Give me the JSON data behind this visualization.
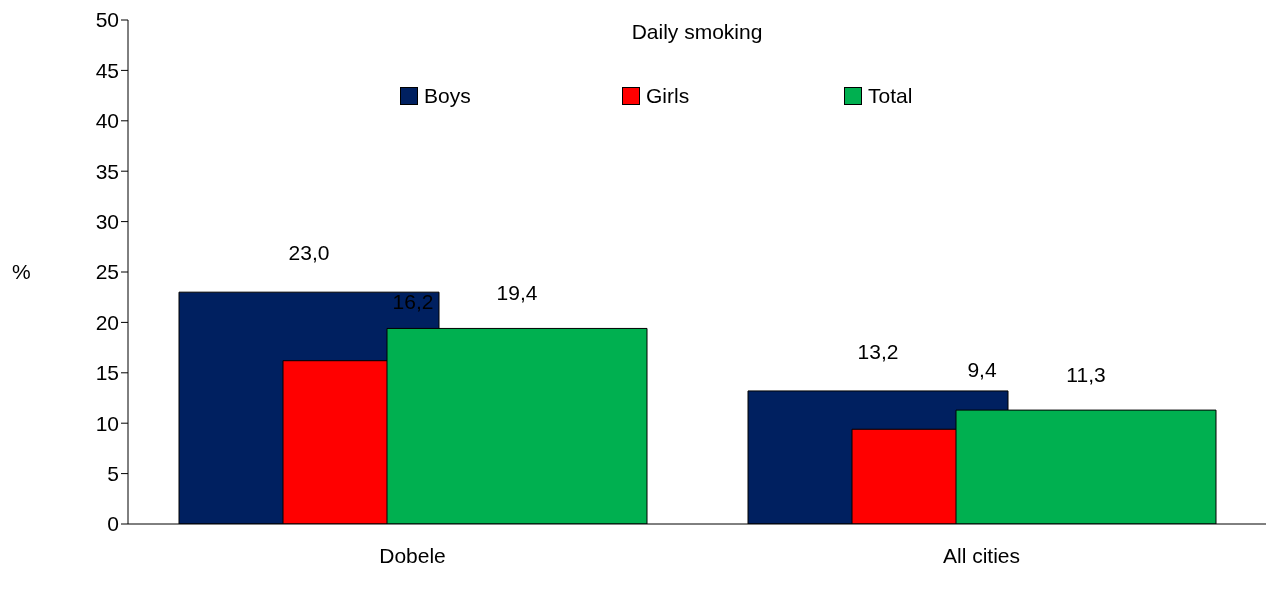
{
  "chart_data": {
    "type": "bar",
    "title": "Daily smoking",
    "ylabel": "%",
    "categories": [
      "Dobele",
      "All cities"
    ],
    "series": [
      {
        "name": "Boys",
        "color": "#002060",
        "values": [
          23.0,
          13.2
        ],
        "value_labels": [
          "23,0",
          "13,2"
        ]
      },
      {
        "name": "Girls",
        "color": "#ff0000",
        "values": [
          16.2,
          9.4
        ],
        "value_labels": [
          "16,2",
          "9,4"
        ]
      },
      {
        "name": "Total",
        "color": "#00b050",
        "values": [
          19.4,
          11.3
        ],
        "value_labels": [
          "19,4",
          "11,3"
        ]
      }
    ],
    "ylim": [
      0,
      50
    ],
    "yticks": [
      0,
      5,
      10,
      15,
      20,
      25,
      30,
      35,
      40,
      45,
      50
    ],
    "legend": "top",
    "grid": false
  }
}
